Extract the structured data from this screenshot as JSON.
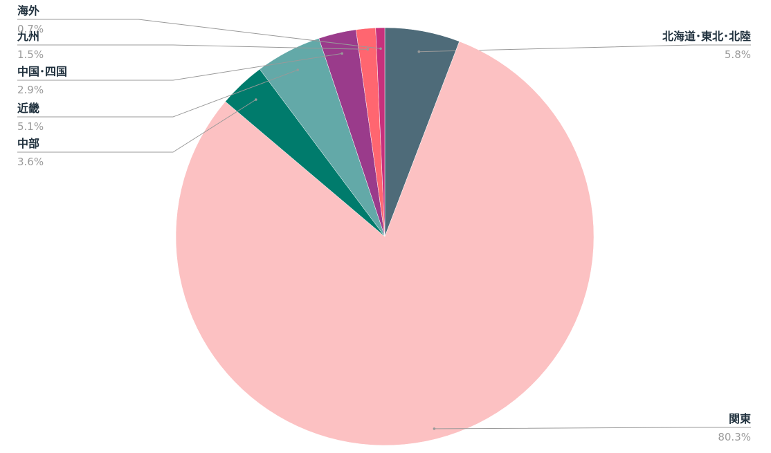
{
  "chart_data": {
    "type": "pie",
    "categories": [
      "北海道･東北･北陸",
      "関東",
      "中部",
      "近畿",
      "中国･四国",
      "九州",
      "海外"
    ],
    "values": [
      5.8,
      80.3,
      3.6,
      5.1,
      2.9,
      1.5,
      0.7
    ],
    "value_labels": [
      "5.8%",
      "80.3%",
      "3.6%",
      "5.1%",
      "2.9%",
      "1.5%",
      "0.7%"
    ],
    "colors": [
      "#4e6b79",
      "#fcc1c2",
      "#007b6c",
      "#63a9a8",
      "#9a3b8b",
      "#ff6670",
      "#c7307c"
    ]
  }
}
